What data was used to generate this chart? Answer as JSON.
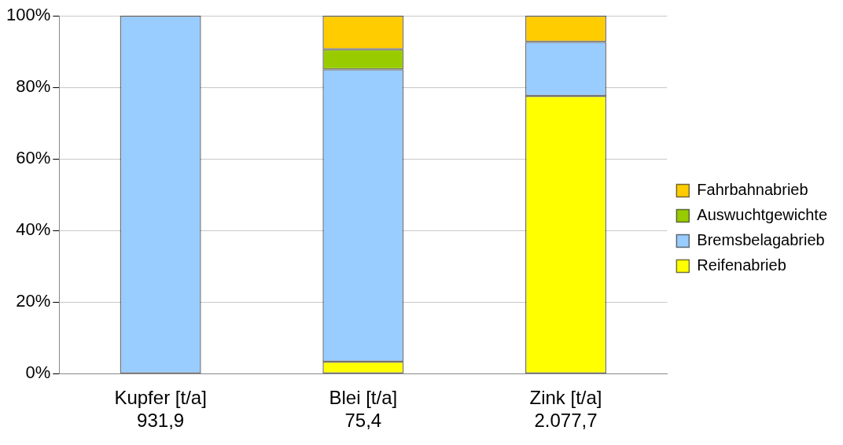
{
  "chart_data": {
    "type": "bar",
    "stacked": true,
    "categories": [
      "Kupfer [t/a]\n931,9",
      "Blei [t/a]\n75,4",
      "Zink [t/a]\n2.077,7"
    ],
    "series": [
      {
        "name": "Reifenabrieb",
        "color": "#ffff00",
        "values": [
          0,
          3.4,
          77.6
        ]
      },
      {
        "name": "Bremsbelagabrieb",
        "color": "#99ccff",
        "values": [
          100,
          81.6,
          15.1
        ]
      },
      {
        "name": "Auswuchtgewichte",
        "color": "#99cc00",
        "values": [
          0,
          5.6,
          0
        ]
      },
      {
        "name": "Fahrbahnabrieb",
        "color": "#ffcc00",
        "values": [
          0,
          9.4,
          7.3
        ]
      }
    ],
    "ylim": [
      0,
      100
    ],
    "yticks": [
      {
        "value": 0,
        "label": "0%"
      },
      {
        "value": 20,
        "label": "20%"
      },
      {
        "value": 40,
        "label": "40%"
      },
      {
        "value": 60,
        "label": "60%"
      },
      {
        "value": 80,
        "label": "80%"
      },
      {
        "value": 100,
        "label": "100%"
      }
    ],
    "grid": "y",
    "legend": "right"
  }
}
